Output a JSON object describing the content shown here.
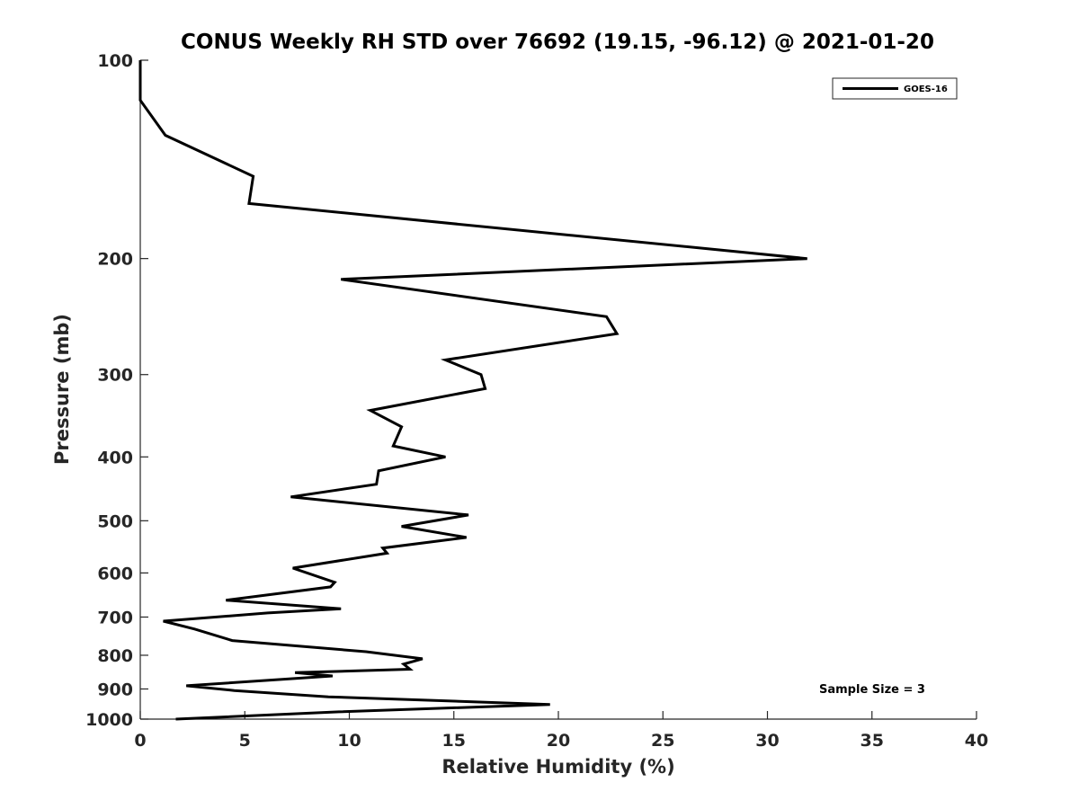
{
  "chart_data": {
    "type": "line",
    "title": "CONUS Weekly RH STD over 76692 (19.15, -96.12) @ 2021-01-20",
    "xlabel": "Relative Humidity (%)",
    "ylabel": "Pressure (mb)",
    "xlim": [
      0,
      40
    ],
    "ylim": [
      100,
      1000
    ],
    "y_scale": "log",
    "y_reversed": true,
    "grid": false,
    "legend_position": "top-right",
    "x_ticks": [
      0,
      5,
      10,
      15,
      20,
      25,
      30,
      35,
      40
    ],
    "y_ticks": [
      100,
      200,
      300,
      400,
      500,
      600,
      700,
      800,
      900,
      1000
    ],
    "annotation": "Sample Size = 3",
    "series": [
      {
        "name": "GOES-16",
        "color": "#000000",
        "points": [
          [
            0,
            100
          ],
          [
            0,
            115
          ],
          [
            1.2,
            130
          ],
          [
            5.4,
            150
          ],
          [
            5.2,
            165
          ],
          [
            31.9,
            200
          ],
          [
            9.6,
            215
          ],
          [
            22.3,
            245
          ],
          [
            22.8,
            260
          ],
          [
            14.6,
            285
          ],
          [
            16.3,
            300
          ],
          [
            16.5,
            315
          ],
          [
            11.0,
            340
          ],
          [
            12.5,
            360
          ],
          [
            12.1,
            385
          ],
          [
            14.6,
            400
          ],
          [
            11.4,
            420
          ],
          [
            11.3,
            440
          ],
          [
            7.2,
            460
          ],
          [
            15.7,
            490
          ],
          [
            12.5,
            510
          ],
          [
            15.6,
            530
          ],
          [
            11.6,
            550
          ],
          [
            11.8,
            560
          ],
          [
            7.3,
            590
          ],
          [
            9.3,
            620
          ],
          [
            9.1,
            630
          ],
          [
            4.1,
            660
          ],
          [
            9.6,
            680
          ],
          [
            6.1,
            690
          ],
          [
            1.1,
            710
          ],
          [
            2.6,
            730
          ],
          [
            4.4,
            760
          ],
          [
            10.8,
            790
          ],
          [
            13.5,
            810
          ],
          [
            12.6,
            825
          ],
          [
            12.9,
            840
          ],
          [
            7.4,
            850
          ],
          [
            9.2,
            860
          ],
          [
            2.2,
            890
          ],
          [
            4.5,
            905
          ],
          [
            9.0,
            925
          ],
          [
            19.6,
            950
          ],
          [
            9.5,
            975
          ],
          [
            1.7,
            1000
          ]
        ]
      }
    ]
  }
}
